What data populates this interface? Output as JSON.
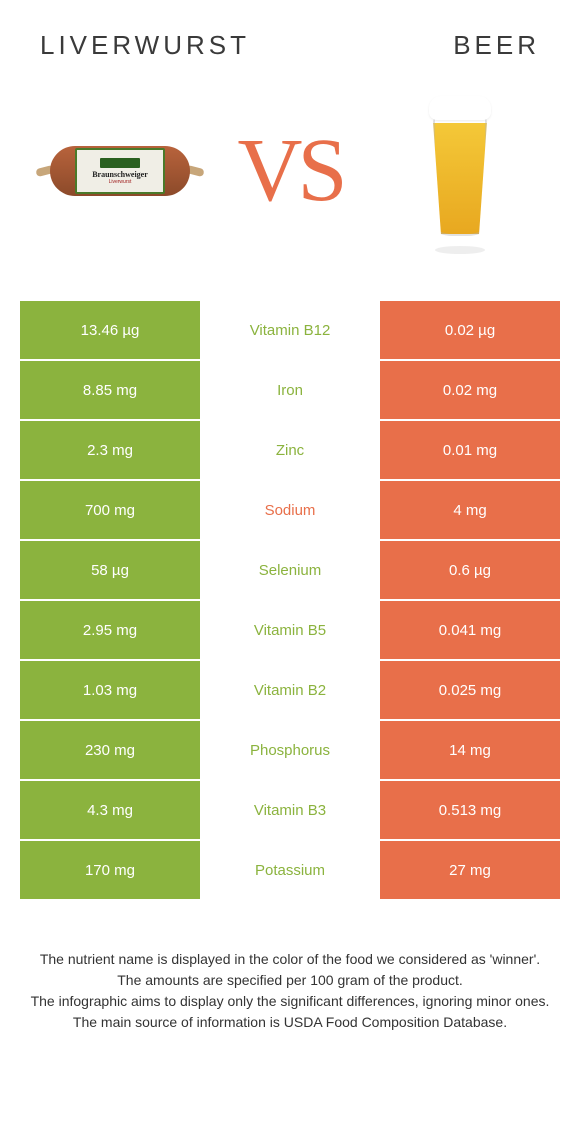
{
  "header": {
    "left_title": "LIVERWURST",
    "right_title": "BEER",
    "vs_label": "VS",
    "liverwurst_label": "Braunschweiger",
    "liverwurst_sublabel": "Liverwurst"
  },
  "colors": {
    "left_color": "#8bb33e",
    "right_color": "#e86f4a",
    "white": "#ffffff"
  },
  "table": {
    "rows": [
      {
        "left": "13.46 µg",
        "mid": "Vitamin B12",
        "right": "0.02 µg",
        "winner": "left"
      },
      {
        "left": "8.85 mg",
        "mid": "Iron",
        "right": "0.02 mg",
        "winner": "left"
      },
      {
        "left": "2.3 mg",
        "mid": "Zinc",
        "right": "0.01 mg",
        "winner": "left"
      },
      {
        "left": "700 mg",
        "mid": "Sodium",
        "right": "4 mg",
        "winner": "right"
      },
      {
        "left": "58 µg",
        "mid": "Selenium",
        "right": "0.6 µg",
        "winner": "left"
      },
      {
        "left": "2.95 mg",
        "mid": "Vitamin B5",
        "right": "0.041 mg",
        "winner": "left"
      },
      {
        "left": "1.03 mg",
        "mid": "Vitamin B2",
        "right": "0.025 mg",
        "winner": "left"
      },
      {
        "left": "230 mg",
        "mid": "Phosphorus",
        "right": "14 mg",
        "winner": "left"
      },
      {
        "left": "4.3 mg",
        "mid": "Vitamin B3",
        "right": "0.513 mg",
        "winner": "left"
      },
      {
        "left": "170 mg",
        "mid": "Potassium",
        "right": "27 mg",
        "winner": "left"
      }
    ]
  },
  "footer": {
    "line1": "The nutrient name is displayed in the color of the food we considered as 'winner'.",
    "line2": "The amounts are specified per 100 gram of the product.",
    "line3": "The infographic aims to display only the significant differences, ignoring minor ones.",
    "line4": "The main source of information is USDA Food Composition Database."
  }
}
